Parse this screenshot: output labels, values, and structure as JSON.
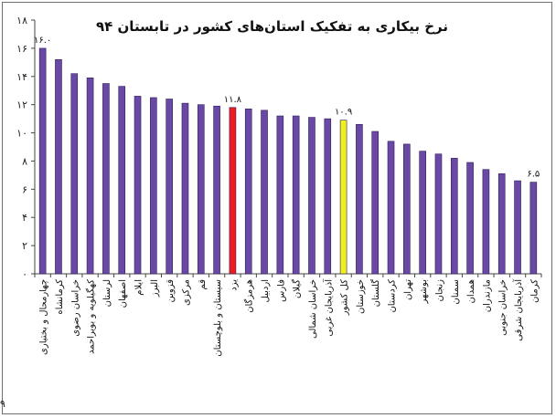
{
  "chart_data": {
    "type": "bar",
    "title": "نرخ بیکاری به تفکیک استان‌های کشور در تابستان ۹۴",
    "xlabel": "",
    "ylabel": "",
    "ylim": [
      0,
      18
    ],
    "yticks": [
      0,
      2,
      4,
      6,
      8,
      10,
      12,
      14,
      16,
      18
    ],
    "ytick_labels": [
      "۰",
      "۲",
      "۴",
      "۶",
      "۸",
      "۱۰",
      "۱۲",
      "۱۴",
      "۱۶",
      "۱۸"
    ],
    "grid": false,
    "colors": {
      "default": "#6a48a6",
      "highlight_red": "#ee1c1c",
      "highlight_yellow": "#f0f01e"
    },
    "categories": [
      "چهارمحال و بختیاری",
      "کرمانشاه",
      "خراسان رضوی",
      "کهگیلویه و بویراحمد",
      "لرستان",
      "اصفهان",
      "ایلام",
      "البرز",
      "قزوین",
      "مرکزی",
      "قم",
      "سیستان و بلوچستان",
      "یزد",
      "هرمزگان",
      "اردبیل",
      "فارس",
      "گیلان",
      "خراسان شمالی",
      "آذربایجان غربی",
      "کل کشور",
      "خوزستان",
      "گلستان",
      "کردستان",
      "تهران",
      "بوشهر",
      "زنجان",
      "سمنان",
      "همدان",
      "مازندران",
      "خراسان جنوبی",
      "آذربایجان شرقی",
      "کرمان"
    ],
    "values": [
      16.0,
      15.2,
      14.2,
      13.9,
      13.5,
      13.3,
      12.6,
      12.5,
      12.4,
      12.1,
      12.0,
      11.9,
      11.8,
      11.7,
      11.6,
      11.2,
      11.2,
      11.1,
      11.0,
      10.9,
      10.6,
      10.1,
      9.4,
      9.2,
      8.7,
      8.5,
      8.2,
      7.9,
      7.4,
      7.1,
      6.6,
      6.5
    ],
    "highlight": {
      "12": "red",
      "19": "yellow"
    },
    "data_labels": [
      {
        "index": 0,
        "text": "۱۶.۰"
      },
      {
        "index": 12,
        "text": "۱۱.۸"
      },
      {
        "index": 19,
        "text": "۱۰.۹"
      },
      {
        "index": 31,
        "text": "۶.۵"
      }
    ]
  },
  "page_number": "۹"
}
